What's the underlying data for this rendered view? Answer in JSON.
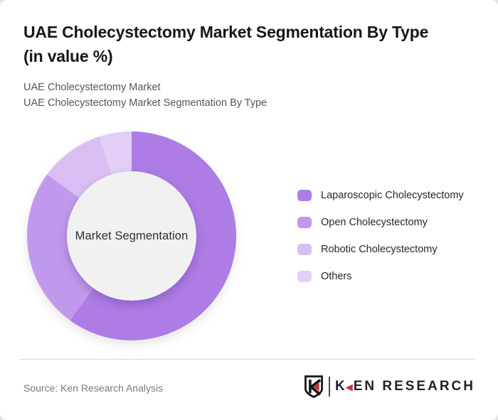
{
  "window": {
    "background": "#e3e3e3",
    "card_background": "#ffffff"
  },
  "header": {
    "title_line1": "UAE Cholecystectomy Market Segmentation By Type",
    "title_line2": "(in value %)",
    "subtitle_line1": "UAE Cholecystectomy Market",
    "subtitle_line2": "UAE Cholecystectomy Market Segmentation By Type"
  },
  "chart_data": {
    "type": "pie",
    "subtype": "donut",
    "title": "UAE Cholecystectomy Market Segmentation By Type (in value %)",
    "center_label": "Market Segmentation",
    "unit": "value %",
    "start_angle_deg": 0,
    "direction": "clockwise",
    "legend_position": "right",
    "hole_fill": "#f1f1f2",
    "categories": [
      "Laparoscopic Cholecystectomy",
      "Open Cholecystectomy",
      "Robotic Cholecystectomy",
      "Others"
    ],
    "values": [
      60,
      25,
      10,
      5
    ],
    "colors": [
      "#ad7ce5",
      "#c199ec",
      "#d9bef3",
      "#e2cff6"
    ]
  },
  "footer": {
    "source": "Source: Ken Research Analysis",
    "logo": {
      "text_k": "K",
      "triangle_glyph": "◀",
      "text_rest": "EN RESEARCH",
      "accent_color": "#c5333b",
      "text_color": "#1f2126"
    }
  }
}
